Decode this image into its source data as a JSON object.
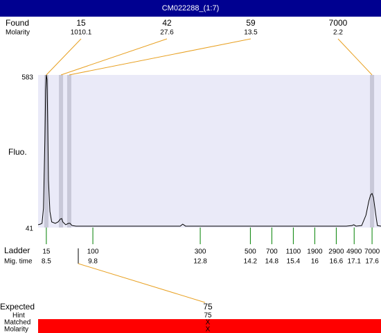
{
  "title": "CM022288_(1:7)",
  "chart_data": {
    "type": "line",
    "y_label": "Fluo.",
    "color": "#000000",
    "ylim": [
      41,
      583
    ],
    "yticks": [
      41,
      583
    ],
    "xlim": [
      8.27,
      17.85
    ],
    "x": [
      8.27,
      8.33,
      8.38,
      8.42,
      8.46,
      8.48,
      8.5,
      8.52,
      8.54,
      8.56,
      8.6,
      8.65,
      8.75,
      8.83,
      8.89,
      8.93,
      8.96,
      9.04,
      9.12,
      9.16,
      9.22,
      9.33,
      10.11,
      12.24,
      12.31,
      12.39,
      13.98,
      15.33,
      16.88,
      17.04,
      17.09,
      17.15,
      17.31,
      17.43,
      17.51,
      17.56,
      17.6,
      17.64,
      17.68,
      17.72,
      17.75,
      17.85
    ],
    "values": [
      51,
      53,
      56,
      110,
      356,
      529,
      583,
      566,
      406,
      209,
      98,
      61,
      56,
      61,
      71,
      73,
      61,
      51,
      56,
      56,
      48,
      46,
      46,
      46,
      53,
      46,
      46,
      46,
      46,
      48,
      51,
      46,
      48,
      85,
      135,
      157,
      162,
      147,
      110,
      73,
      48,
      46
    ],
    "found": {
      "label": "Found",
      "sublabel": "Molarity",
      "peaks": [
        {
          "size": 15,
          "molarity": 1010.1,
          "time": 8.5
        },
        {
          "size": 42,
          "molarity": 27.6,
          "time": 8.91
        },
        {
          "size": 59,
          "molarity": 13.5,
          "time": 9.14
        },
        {
          "size": 7000,
          "molarity": 2.2,
          "time": 17.6
        }
      ]
    },
    "ladder": {
      "label": "Ladder",
      "sublabel": "Mig. time",
      "sizes": [
        15,
        100,
        300,
        500,
        700,
        1100,
        1900,
        2900,
        4900,
        7000
      ],
      "times": [
        8.5,
        9.8,
        12.8,
        14.2,
        14.8,
        15.4,
        16,
        16.6,
        17.1,
        17.6
      ]
    },
    "expected": {
      "label": "Expected",
      "value": 75,
      "hint_label": "Hint",
      "hint": 75,
      "matched_label": "Matched",
      "matched": "X",
      "molarity_label": "Molarity",
      "molarity": "X"
    }
  }
}
